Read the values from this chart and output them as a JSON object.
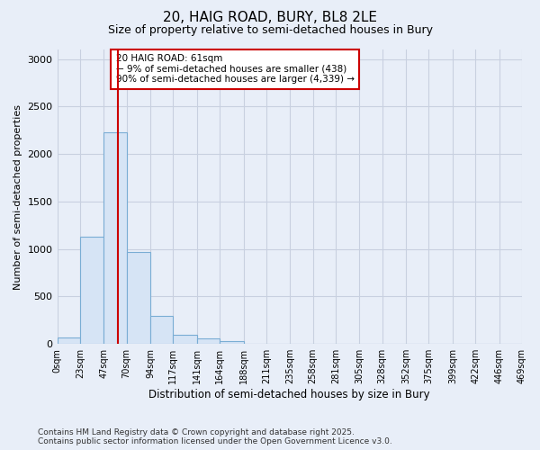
{
  "title_line1": "20, HAIG ROAD, BURY, BL8 2LE",
  "title_line2": "Size of property relative to semi-detached houses in Bury",
  "xlabel": "Distribution of semi-detached houses by size in Bury",
  "ylabel": "Number of semi-detached properties",
  "footnote_line1": "Contains HM Land Registry data © Crown copyright and database right 2025.",
  "footnote_line2": "Contains public sector information licensed under the Open Government Licence v3.0.",
  "annotation_title": "20 HAIG ROAD: 61sqm",
  "annotation_line1": "← 9% of semi-detached houses are smaller (438)",
  "annotation_line2": "90% of semi-detached houses are larger (4,339) →",
  "bar_color": "#d6e4f5",
  "bar_edge_color": "#7aadd4",
  "vline_color": "#cc0000",
  "vline_x": 61,
  "bin_edges": [
    0,
    23,
    47,
    70,
    94,
    117,
    141,
    164,
    188,
    211,
    235,
    258,
    281,
    305,
    328,
    352,
    375,
    399,
    422,
    446,
    469
  ],
  "bin_labels": [
    "0sqm",
    "23sqm",
    "47sqm",
    "70sqm",
    "94sqm",
    "117sqm",
    "141sqm",
    "164sqm",
    "188sqm",
    "211sqm",
    "235sqm",
    "258sqm",
    "281sqm",
    "305sqm",
    "328sqm",
    "352sqm",
    "375sqm",
    "399sqm",
    "422sqm",
    "446sqm",
    "469sqm"
  ],
  "bar_heights": [
    70,
    1130,
    2225,
    970,
    300,
    100,
    55,
    35,
    0,
    0,
    0,
    0,
    0,
    0,
    0,
    0,
    0,
    0,
    0,
    0
  ],
  "ylim": [
    0,
    3100
  ],
  "yticks": [
    0,
    500,
    1000,
    1500,
    2000,
    2500,
    3000
  ],
  "background_color": "#e8eef8",
  "axes_background": "#e8eef8",
  "grid_color": "#c8d0e0",
  "title_fontsize": 11,
  "subtitle_fontsize": 9,
  "annotation_box_facecolor": "#ffffff",
  "annotation_box_edge": "#cc0000",
  "footnote_fontsize": 6.5
}
